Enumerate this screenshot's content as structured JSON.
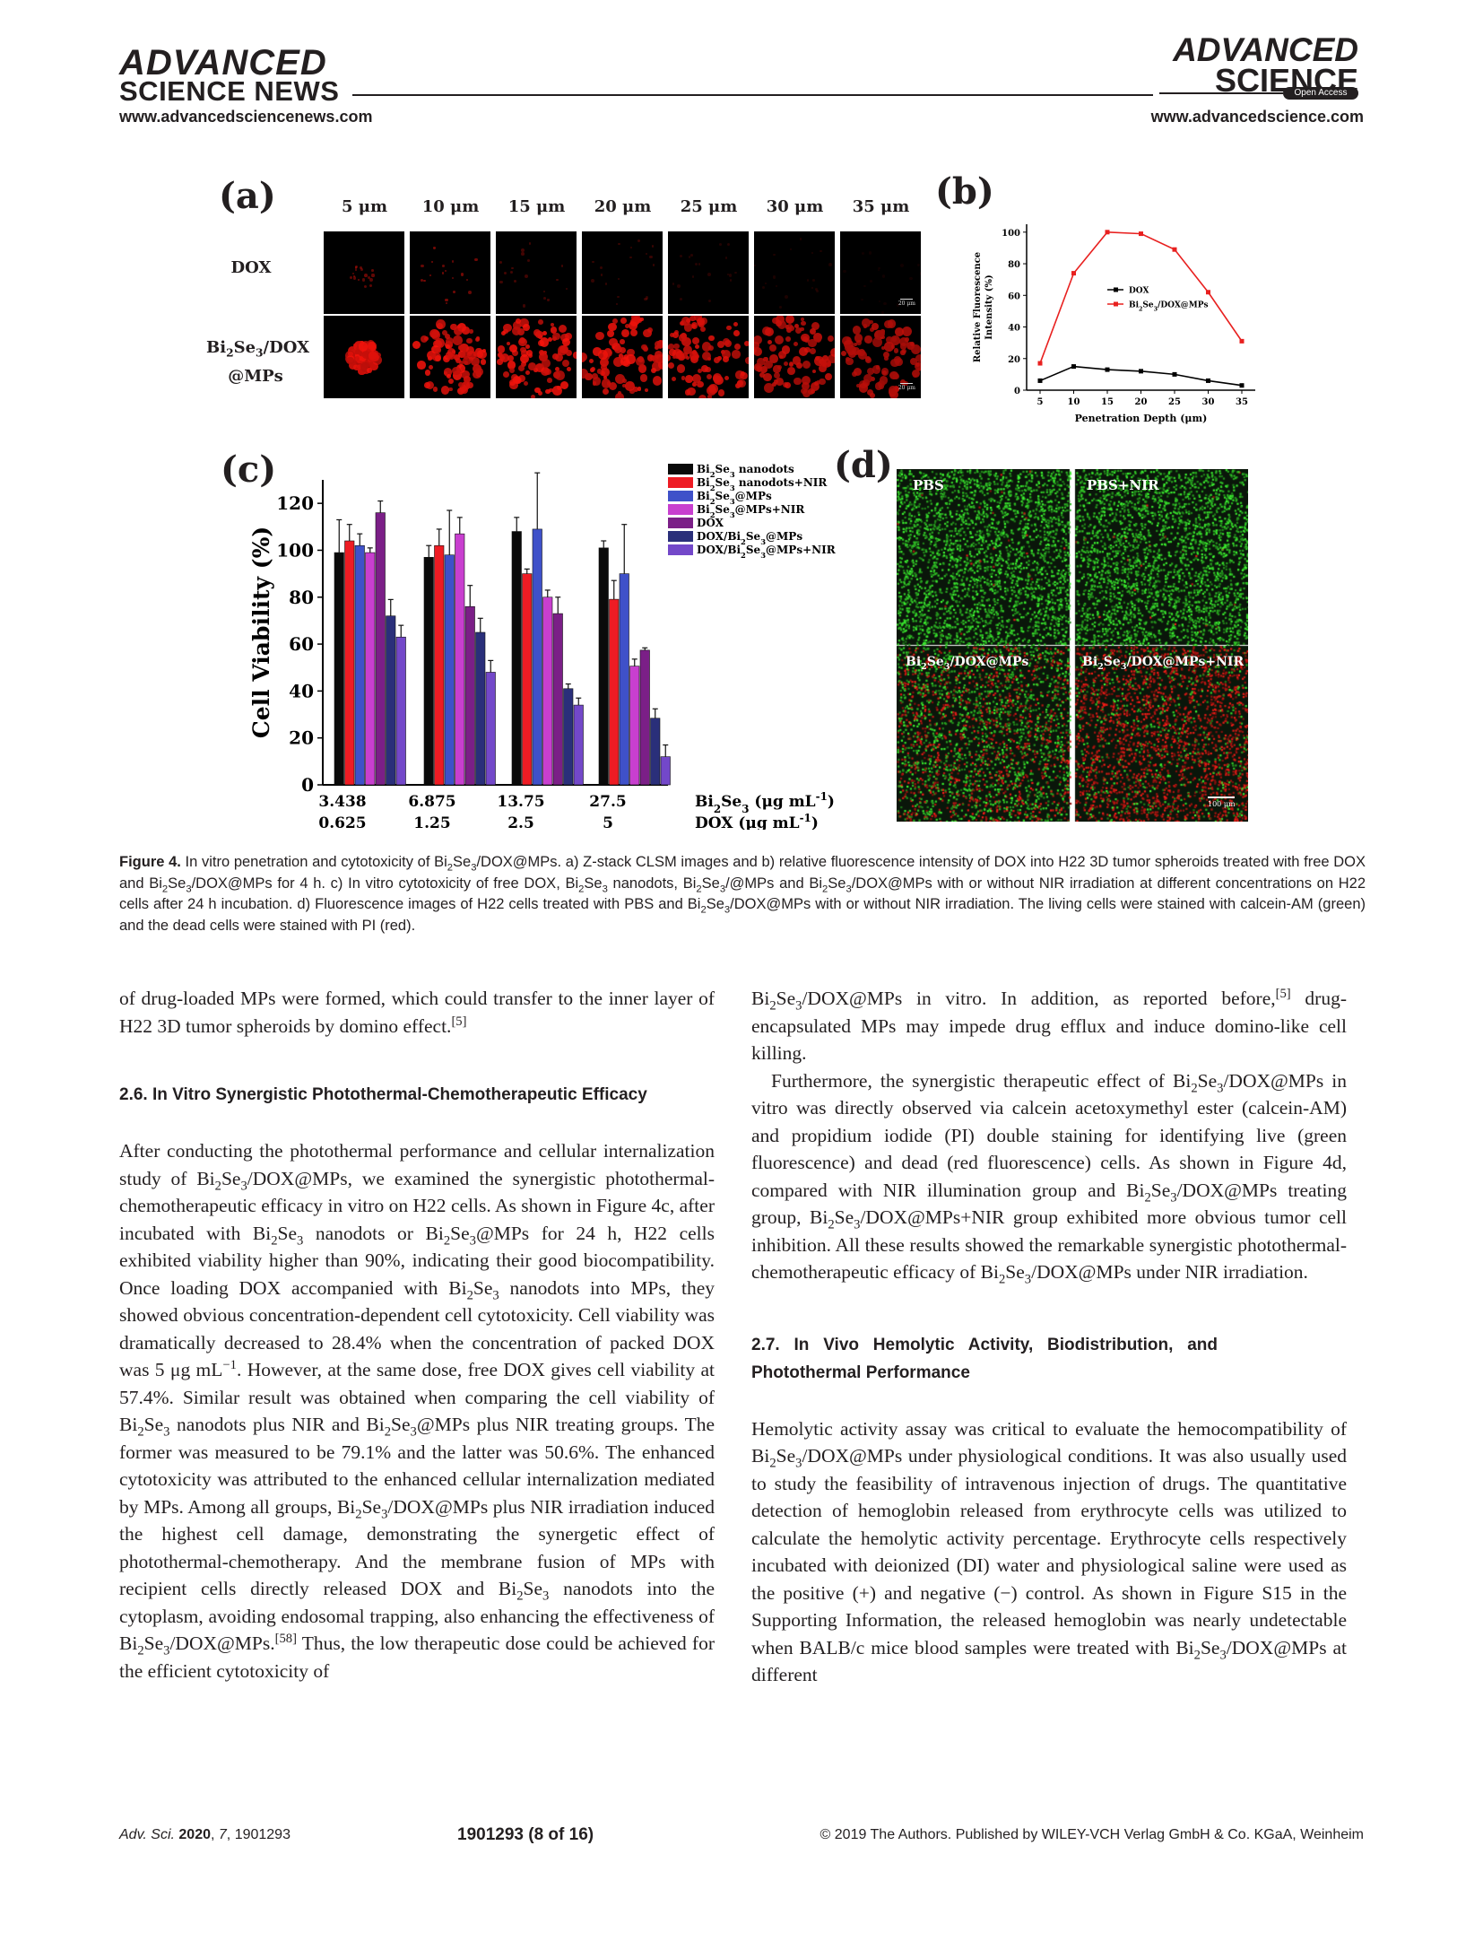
{
  "header": {
    "left_logo_top": "ADVANCED",
    "left_logo_bottom": "SCIENCE NEWS",
    "left_url": "www.advancedsciencenews.com",
    "right_logo_top": "ADVANCED",
    "right_logo_bottom": "SCIENCE",
    "open_access": "Open Access",
    "right_url": "www.advancedscience.com"
  },
  "figure": {
    "panel_a": {
      "letter": "(a)",
      "columns": [
        "5 μm",
        "10 μm",
        "15 μm",
        "20 μm",
        "25 μm",
        "30 μm",
        "35 μm"
      ],
      "row_dox": "DOX",
      "row_mps_line1": "Bi2Se3/DOX",
      "row_mps_line2": "@MPs",
      "scale": "20 μm"
    },
    "panel_b": {
      "letter": "(b)",
      "ylabel_line1": "Relative Fluorescence",
      "ylabel_line2": "Intensity (%)",
      "xlabel": "Penetration Depth (μm)",
      "legend_dox": "DOX",
      "legend_mps": "Bi2Se3/DOX@MPs"
    },
    "panel_c": {
      "letter": "(c)",
      "ylabel": "Cell Viability (%)",
      "xrow1": [
        "3.438",
        "6.875",
        "13.75",
        "27.5"
      ],
      "xrow2": [
        "0.625",
        "1.25",
        "2.5",
        "5"
      ],
      "unit1": "Bi2Se3 (μg mL-1)",
      "unit2": "DOX  (μg mL-1)"
    },
    "panel_d": {
      "letter": "(d)",
      "labels": [
        "PBS",
        "PBS+NIR",
        "Bi2Se3/DOX@MPs",
        "Bi2Se3/DOX@MPs+NIR"
      ],
      "scale": "100 μm"
    }
  },
  "chart_data": [
    {
      "type": "line",
      "title": "",
      "xlabel": "Penetration Depth (μm)",
      "ylabel": "Relative Fluorescence Intensity (%)",
      "x": [
        5,
        10,
        15,
        20,
        25,
        30,
        35
      ],
      "xlim": [
        3,
        37
      ],
      "ylim": [
        0,
        105
      ],
      "yticks": [
        0,
        20,
        40,
        60,
        80,
        100
      ],
      "series": [
        {
          "name": "DOX",
          "color": "#000000",
          "values": [
            6,
            15,
            13,
            12,
            10,
            6,
            3
          ]
        },
        {
          "name": "Bi2Se3/DOX@MPs",
          "color": "#e8201f",
          "values": [
            17,
            74,
            100,
            99,
            89,
            62,
            31
          ]
        }
      ]
    },
    {
      "type": "bar",
      "title": "",
      "xlabel": "Bi2Se3 (μg mL-1) / DOX (μg mL-1)",
      "ylabel": "Cell Viability (%)",
      "categories": [
        "3.438 / 0.625",
        "6.875 / 1.25",
        "13.75 / 2.5",
        "27.5 / 5"
      ],
      "ylim": [
        0,
        130
      ],
      "yticks": [
        0,
        20,
        40,
        60,
        80,
        100,
        120
      ],
      "series": [
        {
          "name": "Bi2Se3 nanodots",
          "color": "#0a0a0a",
          "values": [
            99,
            97,
            108,
            101
          ],
          "errors": [
            14,
            5,
            6,
            3
          ]
        },
        {
          "name": "Bi2Se3 nanodots+NIR",
          "color": "#ee1c24",
          "values": [
            104,
            102,
            90,
            79.1
          ],
          "errors": [
            7,
            7,
            2,
            8
          ]
        },
        {
          "name": "Bi2Se3@MPs",
          "color": "#3f51c9",
          "values": [
            102,
            98,
            109,
            90
          ],
          "errors": [
            5,
            19,
            24,
            21
          ]
        },
        {
          "name": "Bi2Se3@MPs+NIR",
          "color": "#c83fcf",
          "values": [
            99,
            107,
            80,
            50.6
          ],
          "errors": [
            2,
            7,
            3,
            3
          ]
        },
        {
          "name": "DOX",
          "color": "#7b1f87",
          "values": [
            116,
            76,
            73,
            57.4
          ],
          "errors": [
            5,
            9,
            7,
            1
          ]
        },
        {
          "name": "DOX/Bi2Se3@MPs",
          "color": "#2a2f7a",
          "values": [
            72,
            65,
            41,
            28.4
          ],
          "errors": [
            7,
            6,
            2,
            4
          ]
        },
        {
          "name": "DOX/Bi2Se3@MPs+NIR",
          "color": "#7348c9",
          "values": [
            63,
            48,
            34,
            12
          ],
          "errors": [
            5,
            5,
            3,
            5
          ]
        }
      ]
    }
  ],
  "caption": {
    "label": "Figure 4.",
    "text": "In vitro penetration and cytotoxicity of Bi2Se3/DOX@MPs. a) Z-stack CLSM images and b) relative fluorescence intensity of DOX into H22 3D tumor spheroids treated with free DOX and Bi2Se3/DOX@MPs for 4 h. c) In vitro cytotoxicity of free DOX, Bi2Se3 nanodots, Bi2Se3/@MPs and Bi2Se3/DOX@MPs with or without NIR irradiation at different concentrations on H22 cells after 24 h incubation. d) Fluorescence images of H22 cells treated with PBS and Bi2Se3/DOX@MPs with or without NIR irradiation. The living cells were stained with calcein-AM (green) and the dead cells were stained with PI (red)."
  },
  "left_column": {
    "intro": "of drug-loaded MPs were formed, which could transfer to the inner layer of H22 3D tumor spheroids by domino effect.[5]",
    "heading": "2.6. In Vitro Synergistic Photothermal-Chemotherapeutic Efficacy",
    "body": "After conducting the photothermal performance and cellular internalization study of Bi2Se3/DOX@MPs, we examined the synergistic photothermal-chemotherapeutic efficacy in vitro on H22 cells. As shown in Figure 4c, after incubated with Bi2Se3 nanodots or Bi2Se3@MPs for 24 h, H22 cells exhibited viability higher than 90%, indicating their good biocompatibility. Once loading DOX accompanied with Bi2Se3 nanodots into MPs, they showed obvious concentration-dependent cell cytotoxicity. Cell viability was dramatically decreased to 28.4% when the concentration of packed DOX was 5 μg mL−1. However, at the same dose, free DOX gives cell viability at 57.4%. Similar result was obtained when comparing the cell viability of Bi2Se3 nanodots plus NIR and Bi2Se3@MPs plus NIR treating groups. The former was measured to be 79.1% and the latter was 50.6%. The enhanced cytotoxicity was attributed to the enhanced cellular internalization mediated by MPs. Among all groups, Bi2Se3/DOX@MPs plus NIR irradiation induced the highest cell damage, demonstrating the synergetic effect of photothermal-chemotherapy. And the membrane fusion of MPs with recipient cells directly released DOX and Bi2Se3 nanodots into the cytoplasm, avoiding endosomal trapping, also enhancing the effectiveness of Bi2Se3/DOX@MPs.[58] Thus, the low therapeutic dose could be achieved for the efficient cytotoxicity of"
  },
  "right_column": {
    "p1": "Bi2Se3/DOX@MPs in vitro. In addition, as reported before,[5] drug-encapsulated MPs may impede drug efflux and induce domino-like cell killing.",
    "p2": "Furthermore, the synergistic therapeutic effect of Bi2Se3/DOX@MPs in vitro was directly observed via calcein acetoxymethyl ester (calcein-AM) and propidium iodide (PI) double staining for identifying live (green fluorescence) and dead (red fluorescence) cells. As shown in Figure 4d, compared with NIR illumination group and Bi2Se3/DOX@MPs treating group, Bi2Se3/DOX@MPs+NIR group exhibited more obvious tumor cell inhibition. All these results showed the remarkable synergistic photothermal-chemotherapeutic efficacy of Bi2Se3/DOX@MPs under NIR irradiation.",
    "heading": "2.7. In Vivo Hemolytic Activity, Biodistribution, and Photothermal Performance",
    "p3": "Hemolytic activity assay was critical to evaluate the hemocompatibility of Bi2Se3/DOX@MPs under physiological conditions. It was also usually used to study the feasibility of intravenous injection of drugs. The quantitative detection of hemoglobin released from erythrocyte cells was utilized to calculate the hemolytic activity percentage. Erythrocyte cells respectively incubated with deionized (DI) water and physiological saline were used as the positive (+) and negative (−) control. As shown in Figure S15 in the Supporting Information, the released hemoglobin was nearly undetectable when BALB/c mice blood samples were treated with Bi2Se3/DOX@MPs at different"
  },
  "footer": {
    "journal": "Adv. Sci. 2020, 7, 1901293",
    "page": "1901293  (8 of 16)",
    "copyright": "© 2019 The Authors. Published by WILEY-VCH Verlag GmbH & Co. KGaA, Weinheim"
  }
}
